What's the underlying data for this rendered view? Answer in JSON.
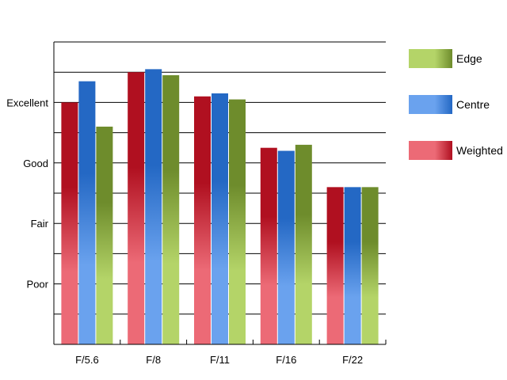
{
  "chart_data": {
    "type": "bar",
    "categories": [
      "F/5.6",
      "F/8",
      "F/11",
      "F/16",
      "F/22"
    ],
    "y_tick_labels": [
      {
        "value": 2,
        "label": "Poor"
      },
      {
        "value": 4,
        "label": "Fair"
      },
      {
        "value": 6,
        "label": "Good"
      },
      {
        "value": 8,
        "label": "Excellent"
      }
    ],
    "ylim": [
      0,
      10
    ],
    "grid": true,
    "legend_position": "right",
    "series": [
      {
        "name": "Weighted",
        "values": [
          8.0,
          9.0,
          8.2,
          6.5,
          5.2
        ],
        "color_dark": "#b01020",
        "color_light": "#ec6a76"
      },
      {
        "name": "Centre",
        "values": [
          8.7,
          9.1,
          8.3,
          6.4,
          5.2
        ],
        "color_dark": "#2468c4",
        "color_light": "#6aa2ee"
      },
      {
        "name": "Edge",
        "values": [
          7.2,
          8.9,
          8.1,
          6.6,
          5.2
        ],
        "color_dark": "#6e8c2c",
        "color_light": "#b4d468"
      }
    ],
    "legend_order": [
      "Edge",
      "Centre",
      "Weighted"
    ]
  }
}
